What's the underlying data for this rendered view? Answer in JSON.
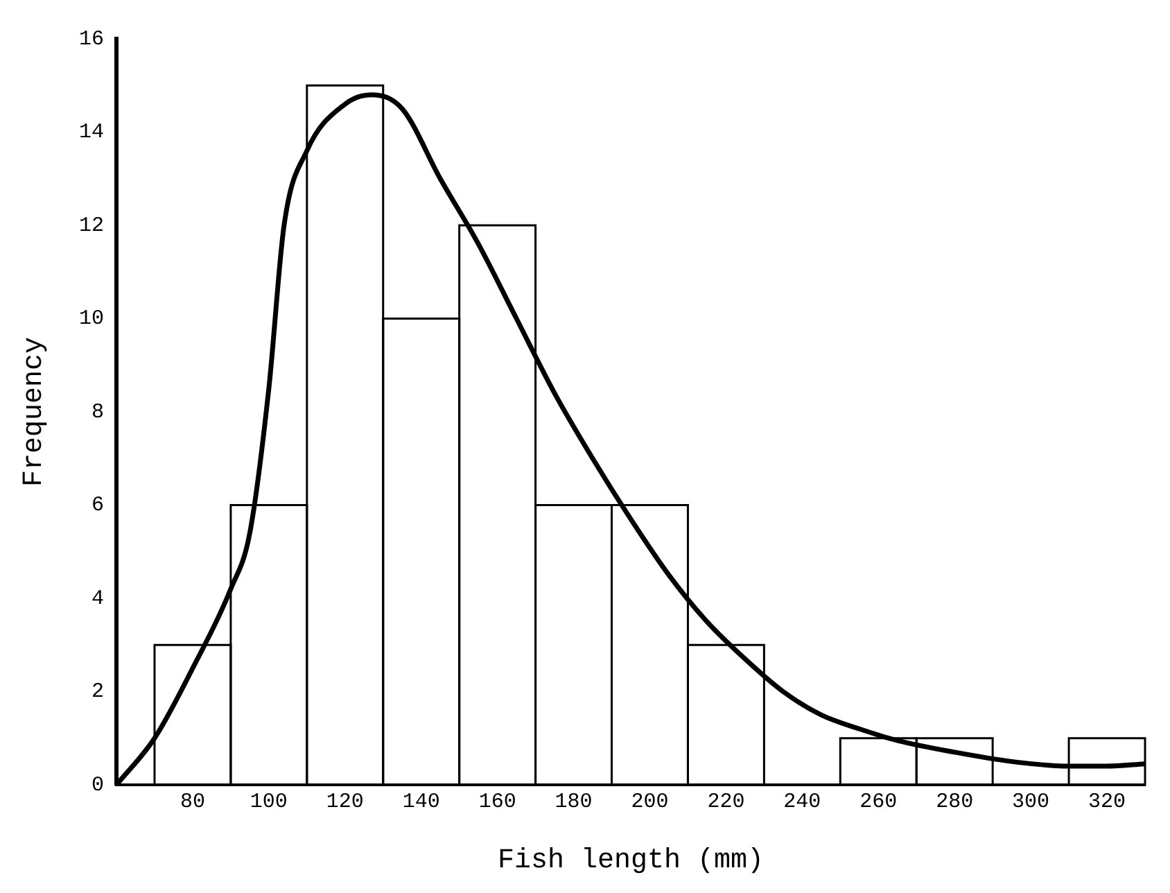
{
  "chart_data": {
    "type": "histogram",
    "xlabel": "Fish length (mm)",
    "ylabel": "Frequency",
    "bins": [
      70,
      90,
      110,
      130,
      150,
      170,
      190,
      210,
      230,
      250,
      270,
      290,
      310,
      330
    ],
    "values": [
      3,
      6,
      15,
      10,
      12,
      6,
      6,
      3,
      0,
      1,
      1,
      0,
      1
    ],
    "color": "#000000",
    "series": [
      {
        "type": "line",
        "color": "#000000",
        "x": [
          60,
          70,
          80,
          90,
          95,
          100,
          104,
          110,
          120,
          127,
          135,
          145,
          155,
          165,
          175,
          185,
          195,
          205,
          215,
          225,
          235,
          245,
          255,
          265,
          280,
          295,
          310,
          320,
          330
        ],
        "values": [
          0,
          1,
          2.5,
          4.2,
          5.4,
          8.5,
          12,
          13.6,
          14.6,
          14.8,
          14.5,
          13,
          11.6,
          10,
          8.4,
          7,
          5.7,
          4.5,
          3.5,
          2.7,
          2,
          1.5,
          1.2,
          0.95,
          0.7,
          0.5,
          0.4,
          0.4,
          0.45
        ]
      }
    ],
    "xlim": [
      60,
      330
    ],
    "xticks": [
      80,
      100,
      120,
      140,
      160,
      180,
      200,
      220,
      240,
      260,
      280,
      300,
      320
    ],
    "ylim": [
      0,
      16
    ],
    "yticks": [
      0,
      2,
      4,
      6,
      8,
      10,
      12,
      14,
      16
    ],
    "grid": false,
    "legend": false
  }
}
